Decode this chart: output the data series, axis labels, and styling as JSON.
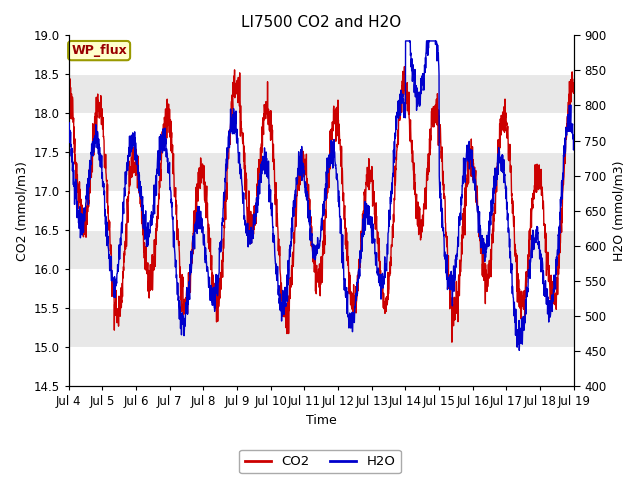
{
  "title": "LI7500 CO2 and H2O",
  "xlabel": "Time",
  "ylabel_left": "CO2 (mmol/m3)",
  "ylabel_right": "H2O (mmol/m3)",
  "co2_color": "#cc0000",
  "h2o_color": "#0000cc",
  "ylim_left": [
    14.5,
    19.0
  ],
  "ylim_right": [
    400,
    900
  ],
  "yticks_left": [
    14.5,
    15.0,
    15.5,
    16.0,
    16.5,
    17.0,
    17.5,
    18.0,
    18.5,
    19.0
  ],
  "yticks_right": [
    400,
    450,
    500,
    550,
    600,
    650,
    700,
    750,
    800,
    850,
    900
  ],
  "xtick_labels": [
    "Jul 4",
    "Jul 5",
    "Jul 6",
    "Jul 7",
    "Jul 8",
    "Jul 9",
    "Jul 10",
    "Jul 11",
    "Jul 12",
    "Jul 13",
    "Jul 14",
    "Jul 15",
    "Jul 16",
    "Jul 17",
    "Jul 18",
    "Jul 19"
  ],
  "annotation_text": "WP_flux",
  "annotation_bg": "#ffffcc",
  "annotation_border": "#999900",
  "band_colors": [
    "#ffffff",
    "#e8e8e8"
  ],
  "legend_co2": "CO2",
  "legend_h2o": "H2O",
  "title_fontsize": 11,
  "axis_fontsize": 9,
  "tick_fontsize": 8.5,
  "linewidth": 1.0
}
